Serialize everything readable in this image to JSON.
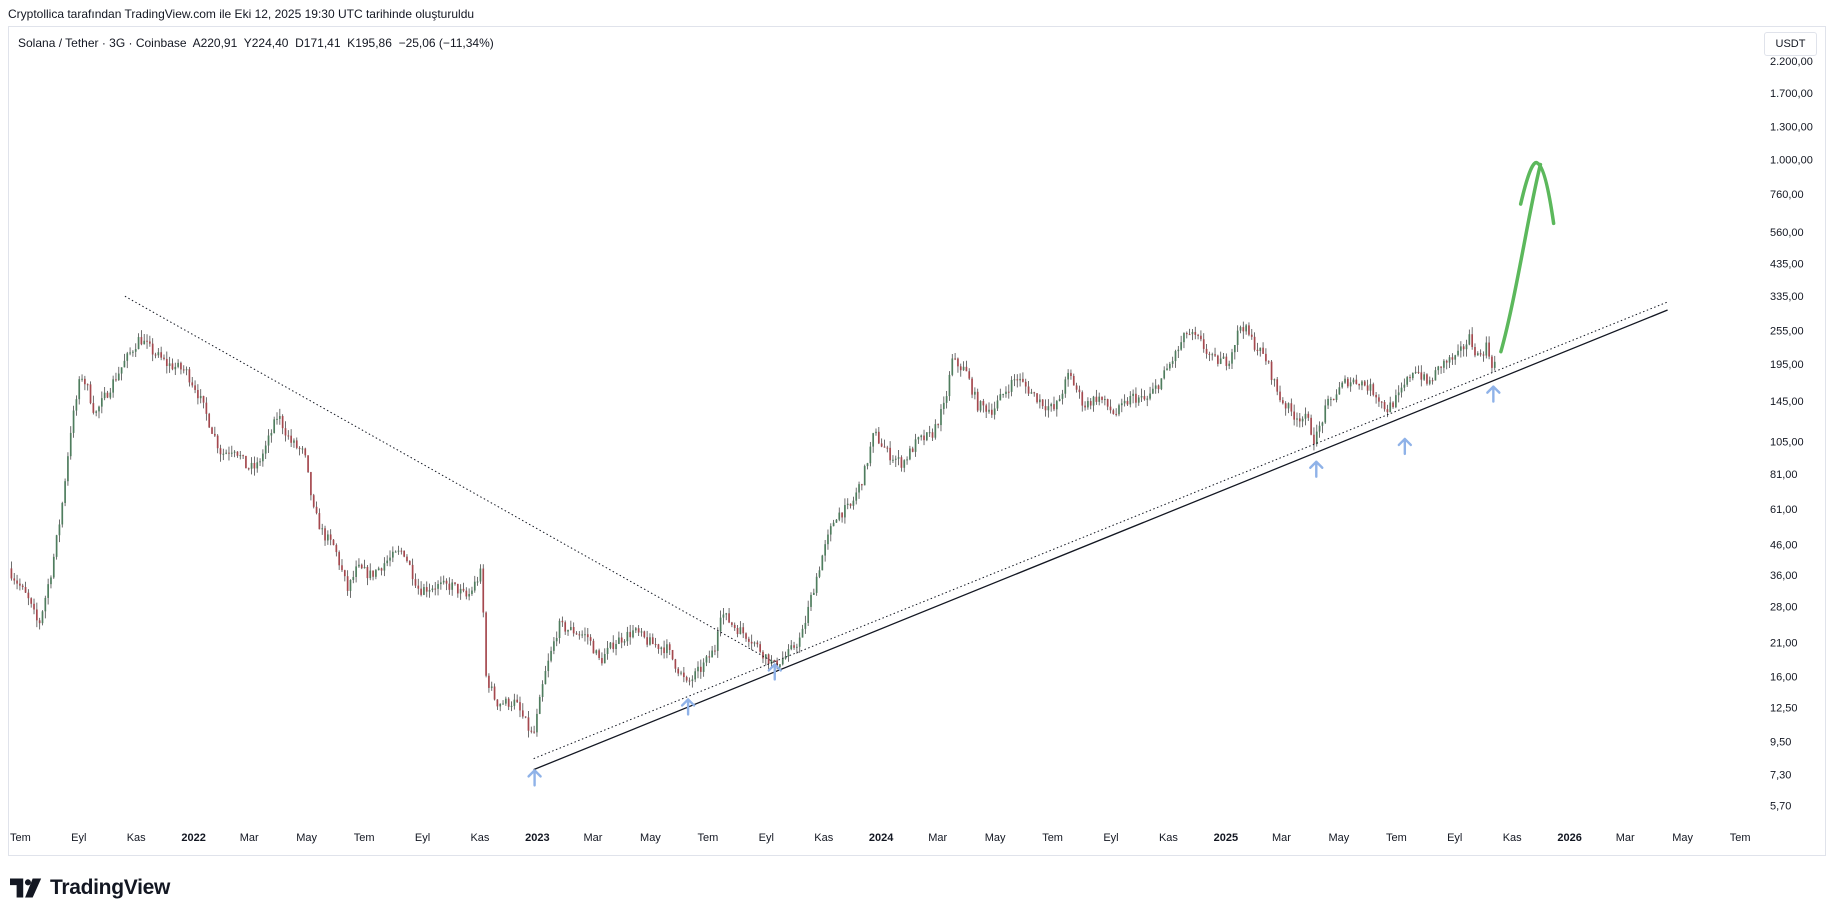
{
  "caption": "Cryptollica tarafından TradingView.com ile Eki 12, 2025 19:30 UTC tarihinde oluşturuldu",
  "legend": {
    "symbol": "Solana / Tether · 3G · Coinbase",
    "open_label": "A",
    "open": "220,91",
    "high_label": "Y",
    "high": "224,40",
    "low_label": "D",
    "low": "171,41",
    "close_label": "K",
    "close": "195,86",
    "change": "−25,06 (−11,34%)"
  },
  "currency": "USDT",
  "brand": "TradingView",
  "colors": {
    "up": "#4f7d5e",
    "down": "#a5484e",
    "trendline": "#131722",
    "arrow_up": "#8fb2e8",
    "projection": "#5cb85c"
  },
  "chart_data": {
    "type": "candlestick",
    "scale": "log",
    "y_ticks": [
      5.7,
      7.3,
      9.5,
      12.5,
      16,
      21,
      28,
      36,
      46,
      61,
      81,
      105,
      145,
      195,
      255,
      335,
      435,
      560,
      760,
      1000,
      1300,
      1700,
      2200
    ],
    "y_tick_labels": [
      "5,70",
      "7,30",
      "9,50",
      "12,50",
      "16,00",
      "21,00",
      "28,00",
      "36,00",
      "46,00",
      "61,00",
      "81,00",
      "105,00",
      "145,00",
      "195,00",
      "255,00",
      "335,00",
      "435,00",
      "560,00",
      "760,00",
      "1.000,00",
      "1.300,00",
      "1.700,00",
      "2.200,00"
    ],
    "x_ticks": [
      {
        "label": "Tem",
        "date": "2021-07-01"
      },
      {
        "label": "Eyl",
        "date": "2021-09-01"
      },
      {
        "label": "Kas",
        "date": "2021-11-01"
      },
      {
        "label": "2022",
        "date": "2022-01-01",
        "year": true
      },
      {
        "label": "Mar",
        "date": "2022-03-01"
      },
      {
        "label": "May",
        "date": "2022-05-01"
      },
      {
        "label": "Tem",
        "date": "2022-07-01"
      },
      {
        "label": "Eyl",
        "date": "2022-09-01"
      },
      {
        "label": "Kas",
        "date": "2022-11-01"
      },
      {
        "label": "2023",
        "date": "2023-01-01",
        "year": true
      },
      {
        "label": "Mar",
        "date": "2023-03-01"
      },
      {
        "label": "May",
        "date": "2023-05-01"
      },
      {
        "label": "Tem",
        "date": "2023-07-01"
      },
      {
        "label": "Eyl",
        "date": "2023-09-01"
      },
      {
        "label": "Kas",
        "date": "2023-11-01"
      },
      {
        "label": "2024",
        "date": "2024-01-01",
        "year": true
      },
      {
        "label": "Mar",
        "date": "2024-03-01"
      },
      {
        "label": "May",
        "date": "2024-05-01"
      },
      {
        "label": "Tem",
        "date": "2024-07-01"
      },
      {
        "label": "Eyl",
        "date": "2024-09-01"
      },
      {
        "label": "Kas",
        "date": "2024-11-01"
      },
      {
        "label": "2025",
        "date": "2025-01-01",
        "year": true
      },
      {
        "label": "Mar",
        "date": "2025-03-01"
      },
      {
        "label": "May",
        "date": "2025-05-01"
      },
      {
        "label": "Tem",
        "date": "2025-07-01"
      },
      {
        "label": "Eyl",
        "date": "2025-09-01"
      },
      {
        "label": "Kas",
        "date": "2025-11-01"
      },
      {
        "label": "2026",
        "date": "2026-01-01",
        "year": true
      },
      {
        "label": "Mar",
        "date": "2026-03-01"
      },
      {
        "label": "May",
        "date": "2026-05-01"
      },
      {
        "label": "Tem",
        "date": "2026-07-01"
      }
    ],
    "x_range": [
      "2021-06-20",
      "2026-07-20"
    ],
    "y_range": [
      5.0,
      2600
    ],
    "price_path": [
      [
        "2021-06-20",
        38
      ],
      [
        "2021-07-10",
        30
      ],
      [
        "2021-07-22",
        24
      ],
      [
        "2021-08-05",
        38
      ],
      [
        "2021-08-15",
        60
      ],
      [
        "2021-08-25",
        115
      ],
      [
        "2021-09-05",
        180
      ],
      [
        "2021-09-12",
        160
      ],
      [
        "2021-09-20",
        130
      ],
      [
        "2021-10-05",
        160
      ],
      [
        "2021-10-20",
        195
      ],
      [
        "2021-11-06",
        240
      ],
      [
        "2021-11-20",
        215
      ],
      [
        "2021-12-05",
        195
      ],
      [
        "2021-12-25",
        185
      ],
      [
        "2022-01-05",
        160
      ],
      [
        "2022-01-20",
        120
      ],
      [
        "2022-02-01",
        95
      ],
      [
        "2022-02-15",
        100
      ],
      [
        "2022-02-28",
        85
      ],
      [
        "2022-03-10",
        85
      ],
      [
        "2022-03-20",
        100
      ],
      [
        "2022-04-02",
        130
      ],
      [
        "2022-04-15",
        105
      ],
      [
        "2022-04-30",
        95
      ],
      [
        "2022-05-10",
        60
      ],
      [
        "2022-05-20",
        50
      ],
      [
        "2022-06-01",
        45
      ],
      [
        "2022-06-15",
        32
      ],
      [
        "2022-06-25",
        38
      ],
      [
        "2022-07-10",
        36
      ],
      [
        "2022-07-25",
        40
      ],
      [
        "2022-08-13",
        44
      ],
      [
        "2022-08-30",
        32
      ],
      [
        "2022-09-15",
        33
      ],
      [
        "2022-10-05",
        33
      ],
      [
        "2022-10-20",
        30
      ],
      [
        "2022-11-04",
        37
      ],
      [
        "2022-11-09",
        16
      ],
      [
        "2022-11-20",
        13
      ],
      [
        "2022-12-10",
        13
      ],
      [
        "2022-12-29",
        9.8
      ],
      [
        "2023-01-10",
        16
      ],
      [
        "2023-01-25",
        24
      ],
      [
        "2023-02-10",
        23
      ],
      [
        "2023-02-25",
        22
      ],
      [
        "2023-03-10",
        18
      ],
      [
        "2023-03-25",
        21
      ],
      [
        "2023-04-15",
        23
      ],
      [
        "2023-05-01",
        21
      ],
      [
        "2023-05-20",
        20
      ],
      [
        "2023-06-10",
        15
      ],
      [
        "2023-06-25",
        17
      ],
      [
        "2023-07-10",
        20
      ],
      [
        "2023-07-15",
        27
      ],
      [
        "2023-07-30",
        24
      ],
      [
        "2023-08-15",
        22
      ],
      [
        "2023-09-01",
        19
      ],
      [
        "2023-09-11",
        17.5
      ],
      [
        "2023-09-25",
        19
      ],
      [
        "2023-10-10",
        22
      ],
      [
        "2023-10-20",
        30
      ],
      [
        "2023-11-01",
        42
      ],
      [
        "2023-11-15",
        58
      ],
      [
        "2023-12-01",
        62
      ],
      [
        "2023-12-15",
        80
      ],
      [
        "2023-12-26",
        112
      ],
      [
        "2024-01-10",
        95
      ],
      [
        "2024-01-25",
        88
      ],
      [
        "2024-02-10",
        105
      ],
      [
        "2024-02-25",
        110
      ],
      [
        "2024-03-10",
        140
      ],
      [
        "2024-03-18",
        200
      ],
      [
        "2024-04-01",
        185
      ],
      [
        "2024-04-14",
        140
      ],
      [
        "2024-04-30",
        135
      ],
      [
        "2024-05-15",
        160
      ],
      [
        "2024-05-25",
        175
      ],
      [
        "2024-06-10",
        155
      ],
      [
        "2024-06-25",
        140
      ],
      [
        "2024-07-05",
        135
      ],
      [
        "2024-07-20",
        180
      ],
      [
        "2024-08-05",
        140
      ],
      [
        "2024-08-20",
        150
      ],
      [
        "2024-09-07",
        130
      ],
      [
        "2024-09-25",
        150
      ],
      [
        "2024-10-10",
        145
      ],
      [
        "2024-10-25",
        170
      ],
      [
        "2024-11-10",
        210
      ],
      [
        "2024-11-22",
        250
      ],
      [
        "2024-12-05",
        235
      ],
      [
        "2024-12-20",
        200
      ],
      [
        "2025-01-05",
        200
      ],
      [
        "2025-01-19",
        270
      ],
      [
        "2025-02-01",
        230
      ],
      [
        "2025-02-15",
        200
      ],
      [
        "2025-02-28",
        150
      ],
      [
        "2025-03-15",
        130
      ],
      [
        "2025-03-30",
        125
      ],
      [
        "2025-04-07",
        105
      ],
      [
        "2025-04-20",
        140
      ],
      [
        "2025-05-10",
        170
      ],
      [
        "2025-05-25",
        170
      ],
      [
        "2025-06-10",
        155
      ],
      [
        "2025-06-22",
        135
      ],
      [
        "2025-07-05",
        150
      ],
      [
        "2025-07-22",
        190
      ],
      [
        "2025-08-05",
        165
      ],
      [
        "2025-08-20",
        195
      ],
      [
        "2025-09-05",
        205
      ],
      [
        "2025-09-18",
        240
      ],
      [
        "2025-09-28",
        205
      ],
      [
        "2025-10-06",
        225
      ],
      [
        "2025-10-12",
        196
      ]
    ],
    "annotations": {
      "descending_line": [
        [
          "2021-10-20",
          335
        ],
        [
          "2023-09-15",
          17.5
        ]
      ],
      "support_solid": [
        [
          "2022-12-28",
          7.6
        ],
        [
          "2026-04-15",
          300
        ]
      ],
      "support_dotted": [
        [
          "2022-12-28",
          8.3
        ],
        [
          "2026-04-15",
          320
        ]
      ],
      "arrow_up_markers": [
        [
          "2022-12-29",
          7.2
        ],
        [
          "2023-06-10",
          12.7
        ],
        [
          "2023-09-10",
          16.8
        ],
        [
          "2025-04-07",
          85
        ],
        [
          "2025-07-10",
          102
        ],
        [
          "2025-10-12",
          155
        ]
      ],
      "projection_curve": [
        [
          "2025-10-20",
          215
        ],
        [
          "2025-11-05",
          330
        ],
        [
          "2025-11-20",
          700
        ],
        [
          "2025-12-01",
          960
        ]
      ],
      "projection_arrowhead": [
        [
          "2025-11-10",
          700
        ],
        [
          "2025-11-28",
          970
        ],
        [
          "2025-12-15",
          600
        ]
      ]
    }
  }
}
